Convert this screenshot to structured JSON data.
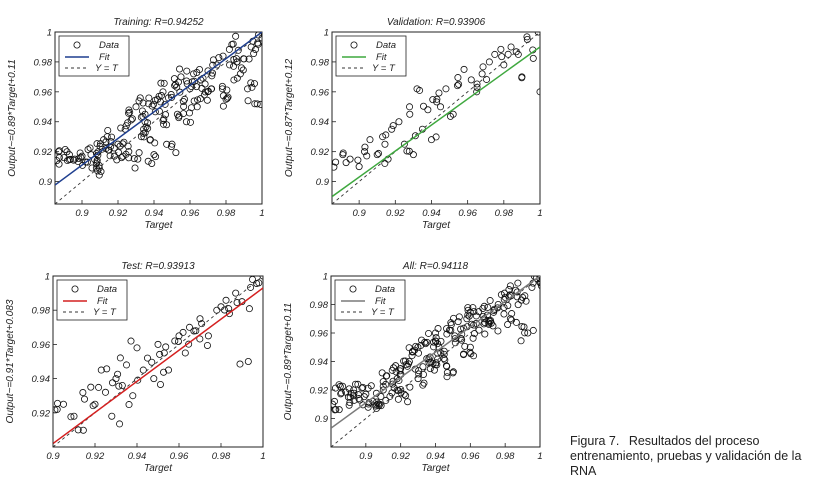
{
  "caption": {
    "label": "Figura 7.",
    "text": "Resultados del proceso entrenamiento, pruebas y validación de la RNA"
  },
  "chart_data": [
    {
      "type": "scatter",
      "title": "Training: R=0.94252",
      "xlabel": "Target",
      "ylabel": "Output~=0.89*Target+0.11",
      "xlim": [
        0.885,
        1.0
      ],
      "ylim": [
        0.885,
        1.0
      ],
      "xticks": [
        "0.9",
        "0.92",
        "0.94",
        "0.96",
        "0.98",
        "1"
      ],
      "yticks": [
        "0.9",
        "0.92",
        "0.94",
        "0.96",
        "0.98",
        "1"
      ],
      "legend": {
        "position": "top-left",
        "entries": [
          "Data",
          "Fit",
          "Y = T"
        ]
      },
      "fit": {
        "slope": 0.89,
        "intercept": 0.11,
        "color": "#1f3f8f"
      },
      "density": 1.0,
      "series": [
        {
          "name": "Data",
          "points": [
            [
              0.886,
              0.914
            ],
            [
              0.89,
              0.916
            ],
            [
              0.893,
              0.918
            ],
            [
              0.896,
              0.915
            ],
            [
              0.9,
              0.917
            ],
            [
              0.903,
              0.913
            ],
            [
              0.905,
              0.918
            ],
            [
              0.908,
              0.909
            ],
            [
              0.908,
              0.912
            ],
            [
              0.909,
              0.92
            ],
            [
              0.912,
              0.928
            ],
            [
              0.914,
              0.93
            ],
            [
              0.915,
              0.921
            ],
            [
              0.918,
              0.917
            ],
            [
              0.92,
              0.925
            ],
            [
              0.922,
              0.916
            ],
            [
              0.924,
              0.935
            ],
            [
              0.926,
              0.92
            ],
            [
              0.928,
              0.942
            ],
            [
              0.93,
              0.95
            ],
            [
              0.931,
              0.915
            ],
            [
              0.933,
              0.93
            ],
            [
              0.935,
              0.94
            ],
            [
              0.935,
              0.945
            ],
            [
              0.937,
              0.952
            ],
            [
              0.938,
              0.928
            ],
            [
              0.94,
              0.918
            ],
            [
              0.942,
              0.955
            ],
            [
              0.943,
              0.947
            ],
            [
              0.945,
              0.96
            ],
            [
              0.947,
              0.938
            ],
            [
              0.948,
              0.956
            ],
            [
              0.95,
              0.925
            ],
            [
              0.952,
              0.965
            ],
            [
              0.953,
              0.945
            ],
            [
              0.955,
              0.97
            ],
            [
              0.957,
              0.955
            ],
            [
              0.958,
              0.94
            ],
            [
              0.96,
              0.962
            ],
            [
              0.962,
              0.972
            ],
            [
              0.964,
              0.95
            ],
            [
              0.966,
              0.968
            ],
            [
              0.968,
              0.958
            ],
            [
              0.97,
              0.974
            ],
            [
              0.972,
              0.962
            ],
            [
              0.975,
              0.978
            ],
            [
              0.978,
              0.962
            ],
            [
              0.98,
              0.955
            ],
            [
              0.982,
              0.978
            ],
            [
              0.984,
              0.992
            ],
            [
              0.986,
              0.98
            ],
            [
              0.988,
              0.972
            ],
            [
              0.99,
              0.982
            ],
            [
              0.992,
              0.962
            ],
            [
              0.994,
              0.99
            ],
            [
              0.996,
              0.952
            ],
            [
              0.998,
              0.998
            ],
            [
              1.0,
              0.996
            ]
          ]
        }
      ]
    },
    {
      "type": "scatter",
      "title": "Validation: R=0.93906",
      "xlabel": "Target",
      "ylabel": "Output~=0.87*Target+0.12",
      "xlim": [
        0.885,
        1.0
      ],
      "ylim": [
        0.885,
        1.0
      ],
      "xticks": [
        "0.9",
        "0.92",
        "0.94",
        "0.96",
        "0.98",
        "1"
      ],
      "yticks": [
        "0.9",
        "0.92",
        "0.94",
        "0.96",
        "0.98",
        "1"
      ],
      "legend": {
        "position": "top-left",
        "entries": [
          "Data",
          "Fit",
          "Y = T"
        ]
      },
      "fit": {
        "slope": 0.87,
        "intercept": 0.12,
        "color": "#3fa83f"
      },
      "density": 0.45,
      "series": [
        {
          "name": "Data",
          "points": [
            [
              0.887,
              0.913
            ],
            [
              0.891,
              0.918
            ],
            [
              0.895,
              0.915
            ],
            [
              0.9,
              0.91
            ],
            [
              0.903,
              0.92
            ],
            [
              0.906,
              0.928
            ],
            [
              0.91,
              0.918
            ],
            [
              0.913,
              0.93
            ],
            [
              0.916,
              0.915
            ],
            [
              0.918,
              0.935
            ],
            [
              0.922,
              0.94
            ],
            [
              0.925,
              0.925
            ],
            [
              0.928,
              0.945
            ],
            [
              0.93,
              0.918
            ],
            [
              0.932,
              0.962
            ],
            [
              0.935,
              0.935
            ],
            [
              0.938,
              0.948
            ],
            [
              0.94,
              0.928
            ],
            [
              0.943,
              0.955
            ],
            [
              0.945,
              0.95
            ],
            [
              0.948,
              0.962
            ],
            [
              0.952,
              0.945
            ],
            [
              0.955,
              0.965
            ],
            [
              0.958,
              0.975
            ],
            [
              0.962,
              0.968
            ],
            [
              0.965,
              0.96
            ],
            [
              0.968,
              0.972
            ],
            [
              0.972,
              0.98
            ],
            [
              0.975,
              0.985
            ],
            [
              0.98,
              0.978
            ],
            [
              0.984,
              0.99
            ],
            [
              0.988,
              0.985
            ],
            [
              0.99,
              0.97
            ],
            [
              0.993,
              0.995
            ],
            [
              0.996,
              0.988
            ],
            [
              0.999,
              1.0
            ],
            [
              1.0,
              0.96
            ]
          ]
        }
      ]
    },
    {
      "type": "scatter",
      "title": "Test: R=0.93913",
      "xlabel": "Target",
      "ylabel": "Output~=0.91*Target+0.083",
      "xlim": [
        0.9,
        1.0
      ],
      "ylim": [
        0.9,
        1.0
      ],
      "xticks": [
        "0.9",
        "0.92",
        "0.94",
        "0.96",
        "0.98",
        "1"
      ],
      "yticks": [
        "0.92",
        "0.94",
        "0.96",
        "0.98",
        "1"
      ],
      "legend": {
        "position": "top-left",
        "entries": [
          "Data",
          "Fit",
          "Y = T"
        ]
      },
      "fit": {
        "slope": 0.91,
        "intercept": 0.083,
        "color": "#d42020"
      },
      "density": 0.45,
      "series": [
        {
          "name": "Data",
          "points": [
            [
              0.902,
              0.922
            ],
            [
              0.905,
              0.925
            ],
            [
              0.91,
              0.918
            ],
            [
              0.912,
              0.91
            ],
            [
              0.915,
              0.928
            ],
            [
              0.918,
              0.935
            ],
            [
              0.92,
              0.925
            ],
            [
              0.923,
              0.945
            ],
            [
              0.925,
              0.932
            ],
            [
              0.928,
              0.918
            ],
            [
              0.93,
              0.94
            ],
            [
              0.933,
              0.936
            ],
            [
              0.935,
              0.948
            ],
            [
              0.938,
              0.93
            ],
            [
              0.94,
              0.958
            ],
            [
              0.943,
              0.945
            ],
            [
              0.945,
              0.952
            ],
            [
              0.948,
              0.94
            ],
            [
              0.95,
              0.96
            ],
            [
              0.953,
              0.955
            ],
            [
              0.955,
              0.945
            ],
            [
              0.958,
              0.962
            ],
            [
              0.96,
              0.965
            ],
            [
              0.963,
              0.955
            ],
            [
              0.965,
              0.97
            ],
            [
              0.968,
              0.968
            ],
            [
              0.97,
              0.975
            ],
            [
              0.974,
              0.965
            ],
            [
              0.978,
              0.98
            ],
            [
              0.98,
              0.982
            ],
            [
              0.984,
              0.978
            ],
            [
              0.987,
              0.99
            ],
            [
              0.99,
              0.985
            ],
            [
              0.993,
              0.95
            ],
            [
              0.995,
              0.998
            ],
            [
              0.998,
              0.996
            ],
            [
              1.0,
              1.0
            ]
          ]
        }
      ]
    },
    {
      "type": "scatter",
      "title": "All: R=0.94118",
      "xlabel": "Target",
      "ylabel": "Output~=0.89*Target+0.11",
      "xlim": [
        0.88,
        1.0
      ],
      "ylim": [
        0.88,
        1.0
      ],
      "xticks": [
        "0.9",
        "0.92",
        "0.94",
        "0.96",
        "0.98",
        "1"
      ],
      "yticks": [
        "0.9",
        "0.92",
        "0.94",
        "0.96",
        "0.98",
        "1"
      ],
      "legend": {
        "position": "top-left",
        "entries": [
          "Data",
          "Fit",
          "Y = T"
        ]
      },
      "fit": {
        "slope": 0.89,
        "intercept": 0.11,
        "color": "#7a7a7a"
      },
      "density": 1.5,
      "series": [
        {
          "name": "Data",
          "points": [
            [
              0.882,
              0.912
            ],
            [
              0.886,
              0.918
            ],
            [
              0.89,
              0.915
            ],
            [
              0.893,
              0.92
            ],
            [
              0.896,
              0.914
            ],
            [
              0.9,
              0.917
            ],
            [
              0.904,
              0.912
            ],
            [
              0.908,
              0.91
            ],
            [
              0.91,
              0.92
            ],
            [
              0.912,
              0.93
            ],
            [
              0.915,
              0.918
            ],
            [
              0.918,
              0.928
            ],
            [
              0.92,
              0.935
            ],
            [
              0.922,
              0.917
            ],
            [
              0.925,
              0.94
            ],
            [
              0.928,
              0.948
            ],
            [
              0.93,
              0.928
            ],
            [
              0.932,
              0.955
            ],
            [
              0.935,
              0.942
            ],
            [
              0.937,
              0.935
            ],
            [
              0.94,
              0.96
            ],
            [
              0.942,
              0.95
            ],
            [
              0.945,
              0.945
            ],
            [
              0.948,
              0.962
            ],
            [
              0.95,
              0.932
            ],
            [
              0.953,
              0.968
            ],
            [
              0.955,
              0.955
            ],
            [
              0.958,
              0.97
            ],
            [
              0.96,
              0.95
            ],
            [
              0.962,
              0.975
            ],
            [
              0.965,
              0.962
            ],
            [
              0.968,
              0.97
            ],
            [
              0.97,
              0.978
            ],
            [
              0.973,
              0.965
            ],
            [
              0.976,
              0.98
            ],
            [
              0.98,
              0.985
            ],
            [
              0.983,
              0.97
            ],
            [
              0.986,
              0.99
            ],
            [
              0.99,
              0.985
            ],
            [
              0.993,
              0.96
            ],
            [
              0.996,
              0.995
            ],
            [
              1.0,
              0.998
            ]
          ]
        }
      ]
    }
  ]
}
